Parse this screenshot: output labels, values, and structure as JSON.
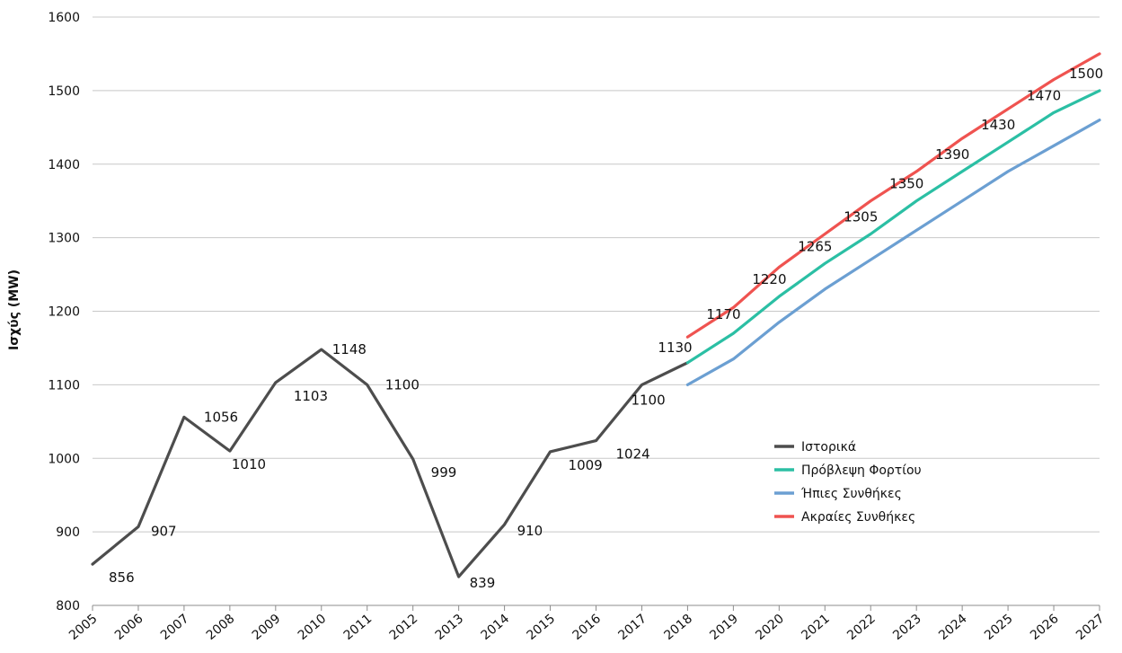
{
  "chart_data": {
    "type": "line",
    "xlabel": "",
    "ylabel": "Ισχύς (MW)",
    "ylim": [
      800,
      1600
    ],
    "yticks": [
      800,
      900,
      1000,
      1100,
      1200,
      1300,
      1400,
      1500,
      1600
    ],
    "grid": "horizontal",
    "legend_position": "lower-right",
    "x": [
      "2005",
      "2006",
      "2007",
      "2008",
      "2009",
      "2010",
      "2011",
      "2012",
      "2013",
      "2014",
      "2015",
      "2016",
      "2017",
      "2018",
      "2019",
      "2020",
      "2021",
      "2022",
      "2023",
      "2024",
      "2025",
      "2026",
      "2027"
    ],
    "series": [
      {
        "name": "Ιστορικά",
        "color": "#4d4d4d",
        "x": [
          "2005",
          "2006",
          "2007",
          "2008",
          "2009",
          "2010",
          "2011",
          "2012",
          "2013",
          "2014",
          "2015",
          "2016",
          "2017",
          "2018"
        ],
        "values": [
          856,
          907,
          1056,
          1010,
          1103,
          1148,
          1100,
          999,
          839,
          910,
          1009,
          1024,
          1100,
          1130
        ]
      },
      {
        "name": "Πρόβλεψη Φορτίου",
        "color": "#2bbfa4",
        "x": [
          "2018",
          "2019",
          "2020",
          "2021",
          "2022",
          "2023",
          "2024",
          "2025",
          "2026",
          "2027"
        ],
        "values": [
          1130,
          1170,
          1220,
          1265,
          1305,
          1350,
          1390,
          1430,
          1470,
          1500
        ]
      },
      {
        "name": "Ήπιες Συνθήκες",
        "color": "#6b9fd2",
        "x": [
          "2018",
          "2019",
          "2020",
          "2021",
          "2022",
          "2023",
          "2024",
          "2025",
          "2026",
          "2027"
        ],
        "values": [
          1100,
          1135,
          1185,
          1230,
          1270,
          1310,
          1350,
          1390,
          1425,
          1460
        ]
      },
      {
        "name": "Ακραίες Συνθήκες",
        "color": "#ef5350",
        "x": [
          "2018",
          "2019",
          "2020",
          "2021",
          "2022",
          "2023",
          "2024",
          "2025",
          "2026",
          "2027"
        ],
        "values": [
          1165,
          1205,
          1260,
          1305,
          1350,
          1390,
          1435,
          1475,
          1515,
          1550
        ]
      }
    ],
    "data_labels": [
      {
        "x": "2005",
        "text": "856"
      },
      {
        "x": "2006",
        "text": "907"
      },
      {
        "x": "2007",
        "text": "1056"
      },
      {
        "x": "2008",
        "text": "1010"
      },
      {
        "x": "2009",
        "text": "1103"
      },
      {
        "x": "2010",
        "text": "1148"
      },
      {
        "x": "2011",
        "text": "1100"
      },
      {
        "x": "2012",
        "text": "999"
      },
      {
        "x": "2013",
        "text": "839"
      },
      {
        "x": "2014",
        "text": "910"
      },
      {
        "x": "2015",
        "text": "1009"
      },
      {
        "x": "2016",
        "text": "1024"
      },
      {
        "x": "2017",
        "text": "1100"
      },
      {
        "x": "2018",
        "text": "1130"
      },
      {
        "x": "2019",
        "text": "1170"
      },
      {
        "x": "2020",
        "text": "1220"
      },
      {
        "x": "2021",
        "text": "1265"
      },
      {
        "x": "2022",
        "text": "1305"
      },
      {
        "x": "2023",
        "text": "1350"
      },
      {
        "x": "2024",
        "text": "1390"
      },
      {
        "x": "2025",
        "text": "1430"
      },
      {
        "x": "2026",
        "text": "1470"
      },
      {
        "x": "2027",
        "text": "1500"
      }
    ]
  }
}
